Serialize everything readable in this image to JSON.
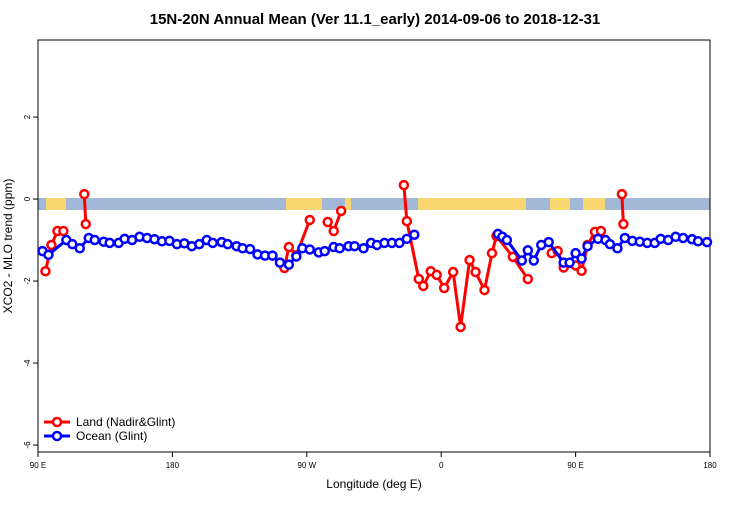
{
  "chart_data": {
    "type": "line",
    "title": "15N-20N Annual Mean (Ver 11.1_early)   2014-09-06 to 2018-12-31",
    "x_label": "Longitude (deg E)",
    "y_label": "XCO2 - MLO trend (ppm)",
    "xlim": [
      90,
      540
    ],
    "ylim": [
      -6.17,
      3.88
    ],
    "xticks": [
      {
        "value": 90,
        "label": "90 E"
      },
      {
        "value": 180,
        "label": "180"
      },
      {
        "value": 270,
        "label": "90 W"
      },
      {
        "value": 360,
        "label": "0"
      },
      {
        "value": 450,
        "label": "90 E"
      },
      {
        "value": 540,
        "label": "180"
      }
    ],
    "yticks": [
      -6,
      -4,
      -2,
      0,
      2
    ],
    "legend": "bottom-left",
    "series": [
      {
        "name": "Land (Nadir&Glint)",
        "color": "#ff0000",
        "x": [
          95,
          99,
          103,
          107,
          114,
          121,
          122,
          200,
          255,
          258,
          263,
          272,
          278,
          284,
          288,
          293,
          314,
          335,
          337,
          345,
          348,
          353,
          357,
          362,
          368,
          373,
          379,
          383,
          389,
          394,
          397,
          408,
          418,
          426,
          434,
          438,
          442,
          450,
          454,
          458,
          463,
          467,
          474,
          481,
          482
        ],
        "values": [
          -1.76,
          -1.12,
          -0.78,
          -0.78,
          null,
          0.12,
          -0.61,
          null,
          -1.68,
          -1.17,
          -1.37,
          -0.51,
          null,
          -0.56,
          -0.78,
          -0.29,
          null,
          0.34,
          -0.54,
          -1.95,
          -2.12,
          -1.76,
          -1.85,
          -2.17,
          -1.78,
          -3.12,
          -1.49,
          -1.78,
          -2.22,
          -1.32,
          -0.9,
          -1.41,
          -1.95,
          null,
          -1.32,
          -1.27,
          -1.67,
          -1.62,
          -1.75,
          -1.12,
          -0.8,
          -0.78,
          null,
          0.12,
          -0.61
        ]
      },
      {
        "name": "Ocean (Glint)",
        "color": "#0000ff",
        "x": [
          93,
          97,
          109,
          113,
          118,
          124,
          128,
          134,
          138,
          144,
          148,
          153,
          158,
          163,
          168,
          173,
          178,
          183,
          188,
          193,
          198,
          203,
          207,
          213,
          217,
          223,
          227,
          232,
          237,
          242,
          247,
          252,
          258,
          263,
          267,
          272,
          278,
          282,
          288,
          292,
          298,
          302,
          308,
          313,
          317,
          322,
          327,
          332,
          337,
          342,
          370,
          398,
          401,
          404,
          414,
          418,
          422,
          427,
          432,
          442,
          446,
          450,
          454,
          458,
          465,
          470,
          473,
          478,
          483,
          488,
          493,
          498,
          503,
          507,
          512,
          517,
          522,
          528,
          532,
          538
        ],
        "values": [
          -1.27,
          -1.36,
          -1.0,
          -1.1,
          -1.2,
          -0.95,
          -1.0,
          -1.04,
          -1.07,
          -1.07,
          -0.97,
          -1.0,
          -0.92,
          -0.95,
          -0.98,
          -1.03,
          -1.02,
          -1.1,
          -1.08,
          -1.15,
          -1.1,
          -1.0,
          -1.07,
          -1.05,
          -1.1,
          -1.15,
          -1.2,
          -1.22,
          -1.35,
          -1.38,
          -1.38,
          -1.55,
          -1.6,
          -1.4,
          -1.2,
          -1.23,
          -1.3,
          -1.27,
          -1.17,
          -1.2,
          -1.15,
          -1.15,
          -1.2,
          -1.07,
          -1.12,
          -1.07,
          -1.07,
          -1.07,
          -0.97,
          -0.87,
          null,
          -0.85,
          -0.92,
          -1.0,
          -1.5,
          -1.25,
          -1.5,
          -1.12,
          -1.05,
          -1.55,
          -1.55,
          -1.32,
          -1.45,
          -1.15,
          -0.97,
          -1.0,
          -1.1,
          -1.2,
          -0.95,
          -1.02,
          -1.04,
          -1.07,
          -1.07,
          -0.97,
          -1.0,
          -0.92,
          -0.95,
          -0.98,
          -1.03,
          -1.05
        ]
      }
    ]
  }
}
